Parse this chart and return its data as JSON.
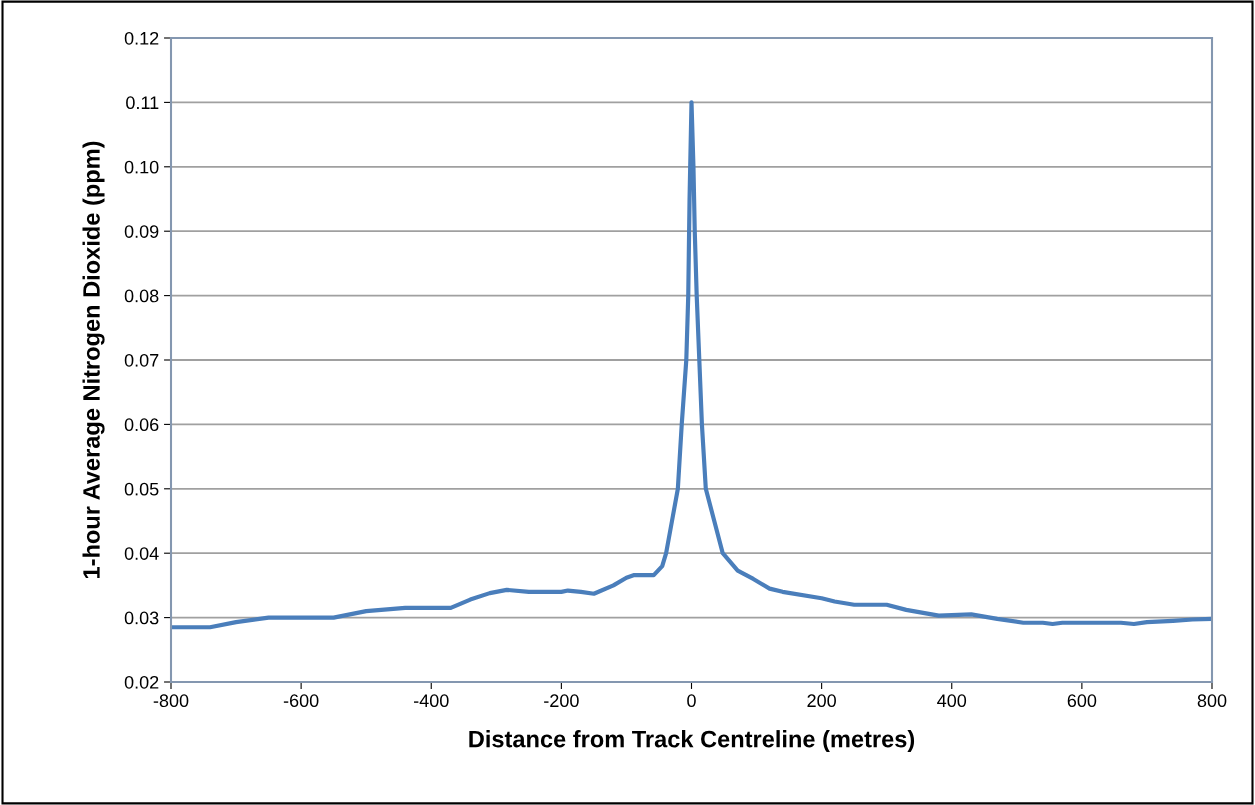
{
  "chart_data": {
    "type": "line",
    "xlabel": "Distance from Track Centreline (metres)",
    "ylabel": "1-hour Average Nitrogen Dioxide (ppm)",
    "xlim": [
      -800,
      800
    ],
    "xticks": [
      -800,
      -600,
      -400,
      -200,
      0,
      200,
      400,
      600,
      800
    ],
    "ylim": [
      0.02,
      0.12
    ],
    "yticks": [
      {
        "value": 0.02,
        "label": "0.02"
      },
      {
        "value": 0.03,
        "label": "0.03"
      },
      {
        "value": 0.04,
        "label": "0.04"
      },
      {
        "value": 0.05,
        "label": "0.05"
      },
      {
        "value": 0.06,
        "label": "0.06"
      },
      {
        "value": 0.07,
        "label": "0.07"
      },
      {
        "value": 0.08,
        "label": "0.08"
      },
      {
        "value": 0.09,
        "label": "0.09"
      },
      {
        "value": 0.1,
        "label": "0.10"
      },
      {
        "value": 0.11,
        "label": "0.11"
      },
      {
        "value": 0.12,
        "label": "0.12"
      }
    ],
    "grid": "y",
    "marker": "none",
    "line_style": "solid",
    "series": [
      {
        "color": "#4a7ebb",
        "x": [
          -800,
          -740,
          -700,
          -650,
          -550,
          -500,
          -440,
          -370,
          -340,
          -310,
          -284,
          -250,
          -200,
          -190,
          -170,
          -150,
          -120,
          -100,
          -88,
          -58,
          -45,
          -39,
          -30,
          -21,
          -15,
          -8,
          -5,
          -3,
          0,
          3,
          5,
          8,
          12,
          16,
          22,
          35,
          48,
          71,
          95,
          120,
          140,
          200,
          220,
          250,
          300,
          330,
          380,
          430,
          470,
          510,
          540,
          555,
          570,
          660,
          680,
          700,
          740,
          770,
          800
        ],
        "values": [
          0.0285,
          0.0285,
          0.0293,
          0.03,
          0.03,
          0.031,
          0.0315,
          0.0315,
          0.0328,
          0.0338,
          0.0343,
          0.034,
          0.034,
          0.0342,
          0.034,
          0.0337,
          0.035,
          0.0362,
          0.0366,
          0.0366,
          0.038,
          0.04,
          0.045,
          0.05,
          0.06,
          0.07,
          0.08,
          0.095,
          0.11,
          0.1,
          0.09,
          0.08,
          0.07,
          0.06,
          0.05,
          0.045,
          0.04,
          0.0373,
          0.036,
          0.0345,
          0.034,
          0.033,
          0.0325,
          0.032,
          0.032,
          0.0312,
          0.0303,
          0.0305,
          0.0298,
          0.0292,
          0.0292,
          0.029,
          0.0292,
          0.0292,
          0.029,
          0.0293,
          0.0295,
          0.0297,
          0.0298
        ]
      }
    ]
  }
}
